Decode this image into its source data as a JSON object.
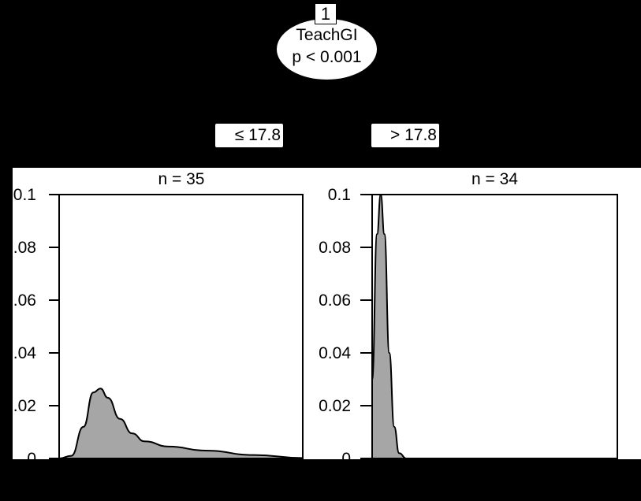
{
  "tree": {
    "node": {
      "id": "1",
      "variable": "TeachGI",
      "p_value": "p < 0.001"
    },
    "edges": [
      {
        "label": "≤ 17.8"
      },
      {
        "label": "> 17.8"
      }
    ],
    "terminal_nodes": [
      {
        "n_label": "n = 35"
      },
      {
        "n_label": "n = 34"
      }
    ]
  },
  "colors": {
    "background": "#000000",
    "panel": "#ffffff",
    "density_fill": "#a6a6a6",
    "line": "#000000"
  },
  "chart_data": [
    {
      "type": "area",
      "title": "n = 35",
      "xlabel": "",
      "ylabel": "",
      "ylim": [
        0,
        0.1
      ],
      "yticks": [
        "0",
        "0.02",
        "0.04",
        "0.06",
        "0.08",
        "0.1"
      ],
      "yticks_visible_text": [
        "0",
        ".02",
        ".04",
        ".06",
        ".08",
        "0.1"
      ],
      "x_relative": [
        0.0,
        0.05,
        0.1,
        0.14,
        0.17,
        0.2,
        0.25,
        0.3,
        0.35,
        0.45,
        0.6,
        0.8,
        1.0
      ],
      "density": [
        0.0,
        0.001,
        0.012,
        0.025,
        0.0265,
        0.023,
        0.015,
        0.0095,
        0.0065,
        0.0045,
        0.003,
        0.0013,
        0.0002
      ],
      "grid": false
    },
    {
      "type": "area",
      "title": "n = 34",
      "xlabel": "",
      "ylabel": "",
      "ylim": [
        0,
        0.1
      ],
      "yticks": [
        "0",
        "0.02",
        "0.04",
        "0.06",
        "0.08",
        "0.1"
      ],
      "x_relative": [
        0.0,
        0.02,
        0.035,
        0.05,
        0.07,
        0.09,
        0.11,
        0.14,
        1.0
      ],
      "density": [
        0.03,
        0.085,
        0.1,
        0.085,
        0.04,
        0.012,
        0.002,
        0.0,
        0.0
      ],
      "grid": false
    }
  ]
}
